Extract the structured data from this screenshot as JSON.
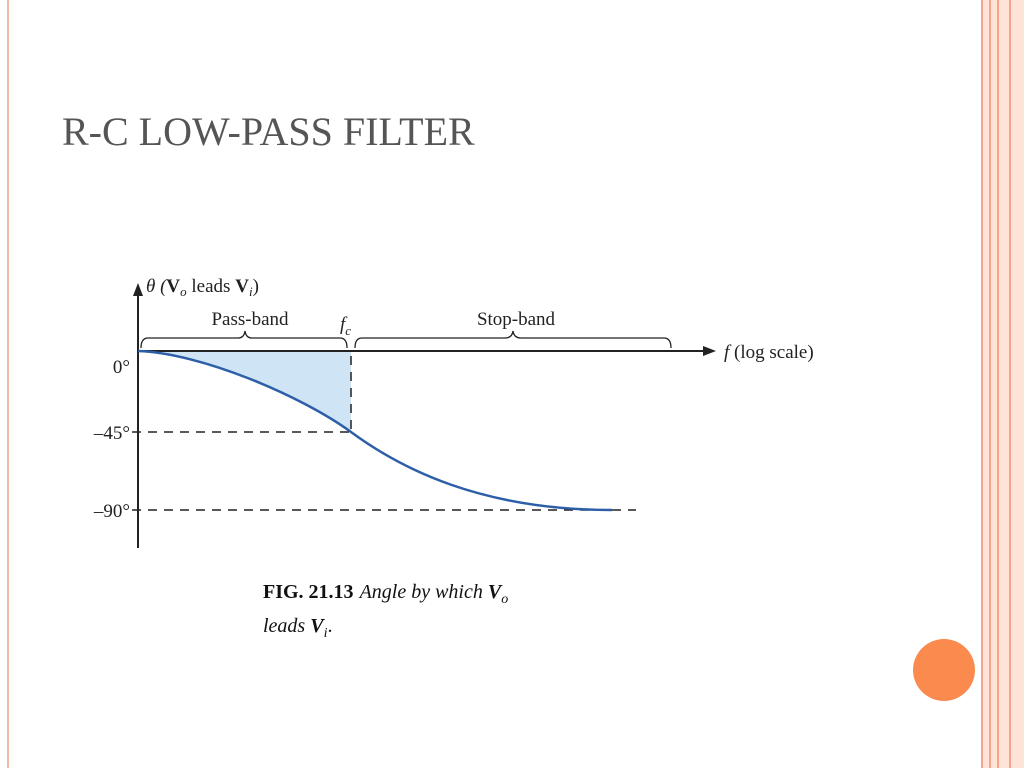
{
  "slide": {
    "title": "R-C LOW-PASS FILTER"
  },
  "figure": {
    "y_axis_label": [
      "θ (",
      "V",
      "o",
      " leads ",
      "V",
      "i",
      ")"
    ],
    "x_axis_label": [
      "f",
      " (log scale)"
    ],
    "cutoff_label": [
      "f",
      "c"
    ],
    "pass_band": "Pass-band",
    "stop_band": "Stop-band",
    "y_ticks": [
      "0°",
      "–45°",
      "–90°"
    ]
  },
  "caption": {
    "number": "FIG. 21.13",
    "text": [
      "Angle by which ",
      "V",
      "o",
      "leads ",
      "V",
      "i",
      "."
    ]
  }
}
